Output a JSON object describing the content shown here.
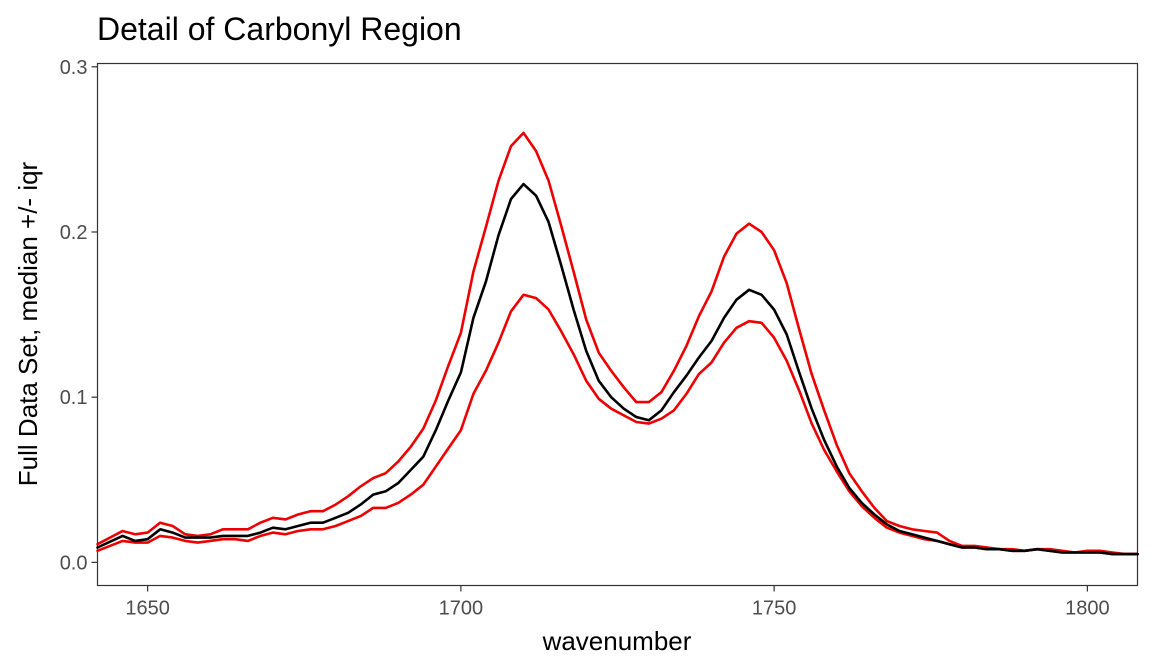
{
  "chart_data": {
    "type": "line",
    "title": "Detail of Carbonyl Region",
    "xlabel": "wavenumber",
    "ylabel": "Full Data Set, median +/- iqr",
    "xlim": [
      1642,
      1808
    ],
    "ylim": [
      -0.014,
      0.302
    ],
    "x_ticks": [
      1650,
      1700,
      1750,
      1800
    ],
    "y_ticks": [
      0.0,
      0.1,
      0.2,
      0.3
    ],
    "x_tick_labels": [
      "1650",
      "1700",
      "1750",
      "1800"
    ],
    "y_tick_labels": [
      "0.0",
      "0.1",
      "0.2",
      "0.3"
    ],
    "grid": false,
    "legend": "none",
    "x": [
      1642,
      1646,
      1648,
      1650,
      1652,
      1654,
      1656,
      1658,
      1660,
      1662,
      1664,
      1666,
      1668,
      1670,
      1672,
      1674,
      1676,
      1678,
      1680,
      1682,
      1684,
      1686,
      1688,
      1690,
      1692,
      1694,
      1696,
      1698,
      1700,
      1702,
      1704,
      1706,
      1708,
      1710,
      1712,
      1714,
      1716,
      1718,
      1720,
      1722,
      1724,
      1726,
      1728,
      1730,
      1732,
      1734,
      1736,
      1738,
      1740,
      1742,
      1744,
      1746,
      1748,
      1750,
      1752,
      1754,
      1756,
      1758,
      1760,
      1762,
      1764,
      1766,
      1768,
      1770,
      1772,
      1774,
      1776,
      1778,
      1780,
      1782,
      1784,
      1786,
      1788,
      1790,
      1792,
      1794,
      1796,
      1798,
      1800,
      1802,
      1804,
      1806,
      1808
    ],
    "series": [
      {
        "color": "#000000",
        "values": [
          0.009,
          0.016,
          0.013,
          0.014,
          0.02,
          0.018,
          0.015,
          0.015,
          0.015,
          0.016,
          0.016,
          0.016,
          0.018,
          0.021,
          0.02,
          0.022,
          0.024,
          0.024,
          0.027,
          0.03,
          0.035,
          0.041,
          0.043,
          0.048,
          0.056,
          0.064,
          0.08,
          0.098,
          0.115,
          0.148,
          0.17,
          0.198,
          0.22,
          0.229,
          0.222,
          0.206,
          0.18,
          0.153,
          0.128,
          0.11,
          0.1,
          0.093,
          0.088,
          0.086,
          0.092,
          0.103,
          0.113,
          0.124,
          0.134,
          0.148,
          0.159,
          0.165,
          0.162,
          0.153,
          0.138,
          0.115,
          0.093,
          0.074,
          0.058,
          0.045,
          0.036,
          0.029,
          0.023,
          0.019,
          0.017,
          0.015,
          0.013,
          0.011,
          0.009,
          0.009,
          0.008,
          0.008,
          0.007,
          0.007,
          0.008,
          0.007,
          0.006,
          0.006,
          0.006,
          0.006,
          0.005,
          0.005,
          0.005
        ]
      },
      {
        "color": "#ee0000",
        "values": [
          0.011,
          0.019,
          0.017,
          0.018,
          0.024,
          0.022,
          0.017,
          0.016,
          0.017,
          0.02,
          0.02,
          0.02,
          0.024,
          0.027,
          0.026,
          0.029,
          0.031,
          0.031,
          0.035,
          0.04,
          0.046,
          0.051,
          0.054,
          0.061,
          0.07,
          0.081,
          0.098,
          0.119,
          0.139,
          0.176,
          0.203,
          0.231,
          0.252,
          0.26,
          0.249,
          0.231,
          0.204,
          0.176,
          0.147,
          0.127,
          0.116,
          0.106,
          0.097,
          0.097,
          0.103,
          0.116,
          0.131,
          0.149,
          0.164,
          0.185,
          0.199,
          0.205,
          0.2,
          0.189,
          0.169,
          0.141,
          0.114,
          0.092,
          0.071,
          0.054,
          0.043,
          0.033,
          0.025,
          0.022,
          0.02,
          0.019,
          0.018,
          0.013,
          0.01,
          0.01,
          0.009,
          0.008,
          0.008,
          0.007,
          0.008,
          0.008,
          0.007,
          0.006,
          0.007,
          0.007,
          0.006,
          0.005,
          0.005
        ]
      },
      {
        "color": "#ee0000",
        "values": [
          0.007,
          0.013,
          0.012,
          0.012,
          0.016,
          0.015,
          0.013,
          0.012,
          0.013,
          0.014,
          0.014,
          0.013,
          0.016,
          0.018,
          0.017,
          0.019,
          0.02,
          0.02,
          0.022,
          0.025,
          0.028,
          0.033,
          0.033,
          0.036,
          0.041,
          0.047,
          0.058,
          0.069,
          0.08,
          0.102,
          0.116,
          0.133,
          0.152,
          0.162,
          0.16,
          0.153,
          0.14,
          0.126,
          0.11,
          0.099,
          0.093,
          0.089,
          0.085,
          0.084,
          0.087,
          0.092,
          0.102,
          0.114,
          0.121,
          0.133,
          0.142,
          0.146,
          0.145,
          0.136,
          0.122,
          0.104,
          0.084,
          0.068,
          0.055,
          0.043,
          0.034,
          0.027,
          0.021,
          0.018,
          0.016,
          0.014,
          0.013,
          0.011,
          0.009,
          0.009,
          0.008,
          0.008,
          0.007,
          0.007,
          0.008,
          0.007,
          0.006,
          0.006,
          0.006,
          0.006,
          0.005,
          0.005,
          0.005
        ]
      }
    ]
  }
}
